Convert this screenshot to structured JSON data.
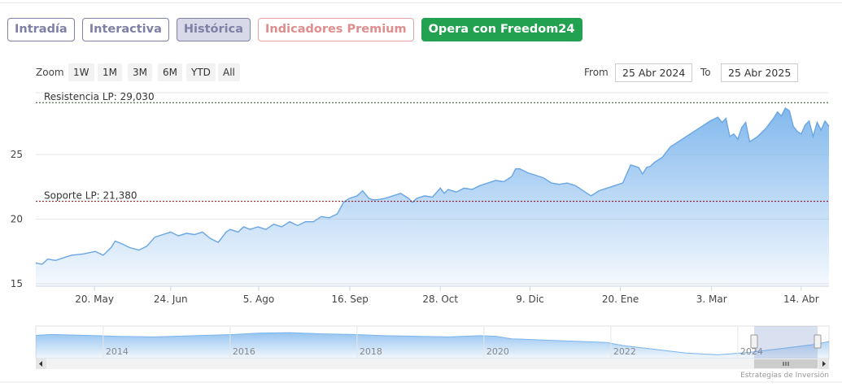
{
  "tabs": [
    {
      "label": "Intradía",
      "state": "normal"
    },
    {
      "label": "Interactiva",
      "state": "normal"
    },
    {
      "label": "Histórica",
      "state": "active"
    },
    {
      "label": "Indicadores Premium",
      "state": "premium"
    },
    {
      "label": "Opera con Freedom24",
      "state": "cta"
    }
  ],
  "zoom": {
    "label": "Zoom",
    "buttons": [
      "1W",
      "1M",
      "3M",
      "6M",
      "YTD",
      "All"
    ]
  },
  "range": {
    "from_label": "From",
    "from_value": "25 Abr 2024",
    "to_label": "To",
    "to_value": "25 Abr 2025"
  },
  "colors": {
    "tab_border": "#7f80a6",
    "premium": "#e08d8d",
    "cta": "#22a250",
    "series_line": "#7cb5ec",
    "resistance_line": "#2f4f2f",
    "support_line": "#8b0000"
  },
  "credit": "Estrategias de Inversión",
  "chart_data": {
    "type": "area",
    "grid": true,
    "legend": "none",
    "xlabel": "",
    "ylabel": "",
    "ylim": [
      14.8,
      29.8
    ],
    "y_ticks": [
      15,
      20,
      25
    ],
    "x_ticks": [
      {
        "label": "20. May",
        "t": 0.074
      },
      {
        "label": "24. Jun",
        "t": 0.17
      },
      {
        "label": "5. Ago",
        "t": 0.281
      },
      {
        "label": "16. Sep",
        "t": 0.396
      },
      {
        "label": "28. Oct",
        "t": 0.51
      },
      {
        "label": "9. Dic",
        "t": 0.623
      },
      {
        "label": "20. Ene",
        "t": 0.737
      },
      {
        "label": "3. Mar",
        "t": 0.852
      },
      {
        "label": "14. Abr",
        "t": 0.965
      }
    ],
    "annotations": [
      {
        "label": "Resistencia LP: 29,030",
        "value": 29.03
      },
      {
        "label": "Soporte LP: 21,380",
        "value": 21.38
      }
    ],
    "series": [
      {
        "t": [
          0,
          0.008,
          0.015,
          0.025,
          0.035,
          0.045,
          0.06,
          0.075,
          0.085,
          0.095,
          0.1,
          0.108,
          0.118,
          0.13,
          0.14,
          0.15,
          0.16,
          0.17,
          0.18,
          0.19,
          0.2,
          0.21,
          0.22,
          0.23,
          0.24,
          0.245,
          0.255,
          0.262,
          0.27,
          0.28,
          0.29,
          0.3,
          0.31,
          0.32,
          0.33,
          0.34,
          0.35,
          0.36,
          0.37,
          0.38,
          0.388,
          0.395,
          0.405,
          0.412,
          0.42,
          0.425,
          0.43,
          0.44,
          0.45,
          0.46,
          0.47,
          0.475,
          0.48,
          0.49,
          0.5,
          0.51,
          0.515,
          0.52,
          0.53,
          0.54,
          0.55,
          0.56,
          0.57,
          0.58,
          0.59,
          0.6,
          0.605,
          0.61,
          0.62,
          0.63,
          0.64,
          0.65,
          0.66,
          0.67,
          0.68,
          0.69,
          0.7,
          0.71,
          0.72,
          0.73,
          0.74,
          0.75,
          0.76,
          0.765,
          0.77,
          0.775,
          0.78,
          0.79,
          0.8,
          0.81,
          0.82,
          0.83,
          0.84,
          0.85,
          0.86,
          0.865,
          0.87,
          0.875,
          0.88,
          0.885,
          0.89,
          0.895,
          0.9,
          0.91,
          0.92,
          0.93,
          0.935,
          0.94,
          0.945,
          0.95,
          0.955,
          0.96,
          0.965,
          0.97,
          0.975,
          0.98,
          0.985,
          0.99,
          0.995,
          1.0
        ],
        "values": [
          16.6,
          16.5,
          16.9,
          16.8,
          17.0,
          17.2,
          17.3,
          17.5,
          17.2,
          17.8,
          18.3,
          18.1,
          17.8,
          17.6,
          17.9,
          18.6,
          18.8,
          19.0,
          18.7,
          18.9,
          18.8,
          19.0,
          18.5,
          18.2,
          19.0,
          19.2,
          19.0,
          19.4,
          19.2,
          19.4,
          19.2,
          19.6,
          19.4,
          19.8,
          19.5,
          19.8,
          19.8,
          20.2,
          20.1,
          20.4,
          21.3,
          21.6,
          21.8,
          22.2,
          21.6,
          21.5,
          21.5,
          21.6,
          21.8,
          22.0,
          21.6,
          21.3,
          21.6,
          21.8,
          21.7,
          22.4,
          22.0,
          22.3,
          22.1,
          22.4,
          22.3,
          22.6,
          22.8,
          23.0,
          22.9,
          23.3,
          23.9,
          23.9,
          23.6,
          23.4,
          23.2,
          22.8,
          22.7,
          22.8,
          22.6,
          22.2,
          21.8,
          22.2,
          22.4,
          22.6,
          22.8,
          24.2,
          24.0,
          23.5,
          24.0,
          24.1,
          24.4,
          24.8,
          25.6,
          26.0,
          26.4,
          26.8,
          27.2,
          27.6,
          27.9,
          27.5,
          27.8,
          26.4,
          26.6,
          26.2,
          27.1,
          27.5,
          26.0,
          26.4,
          27.0,
          27.8,
          28.3,
          28.0,
          28.6,
          28.4,
          27.2,
          26.8,
          26.6,
          27.3,
          27.6,
          26.4,
          27.5,
          26.9,
          27.6,
          27.2
        ]
      }
    ]
  },
  "navigator": {
    "year_labels": [
      "2014",
      "2016",
      "2018",
      "2020",
      "2022",
      "2024"
    ],
    "t": [
      0,
      0.02,
      0.05,
      0.1,
      0.15,
      0.2,
      0.25,
      0.28,
      0.32,
      0.36,
      0.4,
      0.44,
      0.48,
      0.52,
      0.56,
      0.58,
      0.6,
      0.64,
      0.68,
      0.72,
      0.74,
      0.78,
      0.82,
      0.86,
      0.9,
      0.94,
      0.98,
      1.0
    ],
    "values": [
      0.75,
      0.78,
      0.76,
      0.72,
      0.7,
      0.74,
      0.78,
      0.82,
      0.84,
      0.8,
      0.78,
      0.74,
      0.72,
      0.7,
      0.74,
      0.72,
      0.64,
      0.6,
      0.56,
      0.52,
      0.42,
      0.3,
      0.18,
      0.12,
      0.2,
      0.32,
      0.45,
      0.55
    ]
  }
}
